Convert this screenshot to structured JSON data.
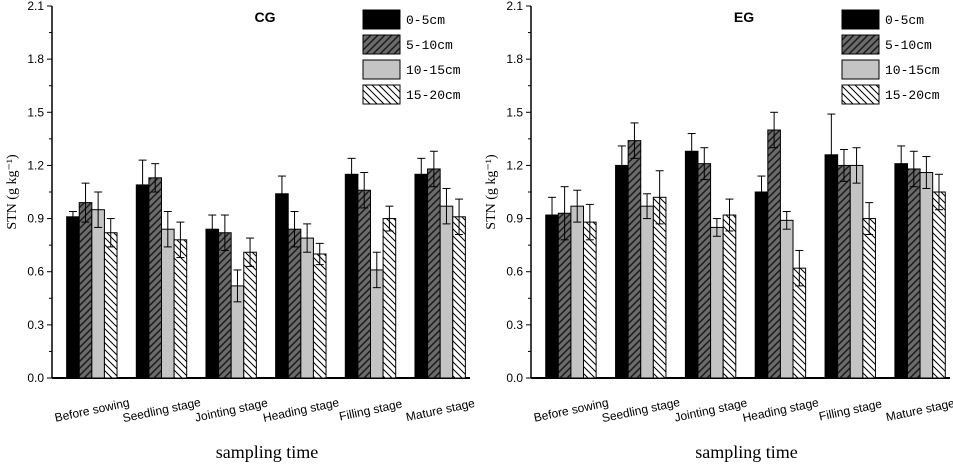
{
  "chart_data": [
    {
      "type": "bar",
      "title": "CG",
      "xlabel": "sampling time",
      "ylabel": "STN (g kg⁻¹)",
      "ylim": [
        0,
        2.1
      ],
      "yticks": [
        "0.0",
        "0.3",
        "0.6",
        "0.9",
        "1.2",
        "1.5",
        "1.8",
        "2.1"
      ],
      "categories": [
        "Before sowing",
        "Seedling stage",
        "Jointing stage",
        "Heading stage",
        "Filling stage",
        "Mature stage"
      ],
      "series": [
        {
          "name": "0-5cm",
          "values": [
            0.91,
            1.09,
            0.84,
            1.04,
            1.15,
            1.15
          ],
          "errors": [
            0.03,
            0.14,
            0.08,
            0.1,
            0.09,
            0.09
          ]
        },
        {
          "name": "5-10cm",
          "values": [
            0.99,
            1.13,
            0.82,
            0.84,
            1.06,
            1.18
          ],
          "errors": [
            0.11,
            0.08,
            0.1,
            0.1,
            0.1,
            0.1
          ]
        },
        {
          "name": "10-15cm",
          "values": [
            0.95,
            0.84,
            0.52,
            0.79,
            0.61,
            0.97
          ],
          "errors": [
            0.1,
            0.1,
            0.09,
            0.08,
            0.1,
            0.1
          ]
        },
        {
          "name": "15-20cm",
          "values": [
            0.82,
            0.78,
            0.71,
            0.7,
            0.9,
            0.91
          ],
          "errors": [
            0.08,
            0.1,
            0.08,
            0.06,
            0.07,
            0.1
          ]
        }
      ]
    },
    {
      "type": "bar",
      "title": "EG",
      "xlabel": "sampling time",
      "ylabel": "STN (g kg⁻¹)",
      "ylim": [
        0,
        2.1
      ],
      "yticks": [
        "0.0",
        "0.3",
        "0.6",
        "0.9",
        "1.2",
        "1.5",
        "1.8",
        "2.1"
      ],
      "categories": [
        "Before sowing",
        "Seedling stage",
        "Jointing stage",
        "Heading stage",
        "Filling stage",
        "Mature stage"
      ],
      "series": [
        {
          "name": "0-5cm",
          "values": [
            0.92,
            1.2,
            1.28,
            1.05,
            1.26,
            1.21
          ],
          "errors": [
            0.1,
            0.11,
            0.1,
            0.09,
            0.23,
            0.1
          ]
        },
        {
          "name": "5-10cm",
          "values": [
            0.93,
            1.34,
            1.21,
            1.4,
            1.2,
            1.18
          ],
          "errors": [
            0.15,
            0.1,
            0.09,
            0.1,
            0.09,
            0.1
          ]
        },
        {
          "name": "10-15cm",
          "values": [
            0.97,
            0.97,
            0.85,
            0.89,
            1.2,
            1.16
          ],
          "errors": [
            0.09,
            0.07,
            0.05,
            0.05,
            0.1,
            0.09
          ]
        },
        {
          "name": "15-20cm",
          "values": [
            0.88,
            1.02,
            0.92,
            0.62,
            0.9,
            1.05
          ],
          "errors": [
            0.1,
            0.15,
            0.09,
            0.1,
            0.09,
            0.1
          ]
        }
      ]
    }
  ]
}
